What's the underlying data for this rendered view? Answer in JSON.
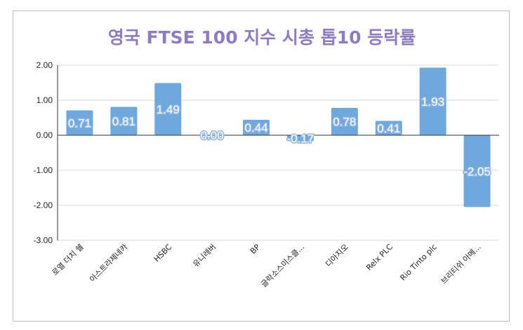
{
  "chart_data": {
    "type": "bar",
    "title": "영국 FTSE 100 지수 시총 톱10 등락률",
    "categories": [
      "로열 더치 쉘",
      "아스트라제네카",
      "HSBC",
      "유니레버",
      "BP",
      "글락소스미스클...",
      "디아지오",
      "Relx PLC",
      "Rio Tinto plc",
      "브리티쉬 아메..."
    ],
    "values": [
      0.71,
      0.81,
      1.49,
      0.0,
      0.44,
      -0.17,
      0.78,
      0.41,
      1.93,
      -2.05
    ],
    "data_labels": [
      "0.71",
      "0.81",
      "1.49",
      "0.00",
      "0.44",
      "-0.17",
      "0.78",
      "0.41",
      "1.93",
      "-2.05"
    ],
    "yticks": [
      "2.00",
      "1.00",
      "0.00",
      "-1.00",
      "-2.00",
      "-3.00"
    ],
    "ytick_values": [
      2,
      1,
      0,
      -1,
      -2,
      -3
    ],
    "ylim": [
      -3,
      2
    ],
    "grid": true,
    "bar_color": "#6fa8dc",
    "title_color": "#8e7cc3"
  }
}
